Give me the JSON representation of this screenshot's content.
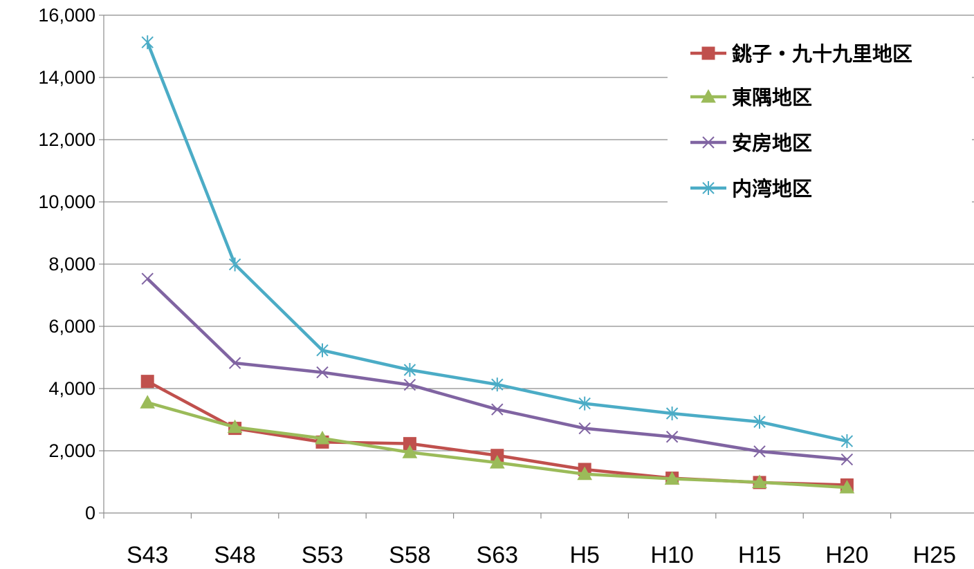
{
  "chart_data": {
    "type": "line",
    "title": "",
    "xlabel": "",
    "ylabel": "",
    "categories": [
      "S43",
      "S48",
      "S53",
      "S58",
      "S63",
      "H5",
      "H10",
      "H15",
      "H20",
      "H25"
    ],
    "ylim": [
      0,
      16000
    ],
    "yticks": [
      0,
      2000,
      4000,
      6000,
      8000,
      10000,
      12000,
      14000,
      16000
    ],
    "ytick_labels": [
      "0",
      "2,000",
      "4,000",
      "6,000",
      "8,000",
      "10,000",
      "12,000",
      "14,000",
      "16,000"
    ],
    "grid": true,
    "legend": "top-right",
    "series": [
      {
        "name": "銚子・九十九里地区",
        "color": "#c0504d",
        "marker": "square",
        "values": [
          4230,
          2720,
          2280,
          2230,
          1850,
          1400,
          1120,
          980,
          900,
          null
        ]
      },
      {
        "name": "東隅地区",
        "color": "#9bbb59",
        "marker": "triangle",
        "values": [
          3550,
          2760,
          2400,
          1950,
          1620,
          1250,
          1100,
          990,
          820,
          null
        ]
      },
      {
        "name": "安房地区",
        "color": "#8064a2",
        "marker": "x",
        "values": [
          7530,
          4820,
          4520,
          4120,
          3330,
          2720,
          2450,
          1980,
          1720,
          null
        ]
      },
      {
        "name": "内湾地区",
        "color": "#4bacc6",
        "marker": "star",
        "values": [
          15130,
          7990,
          5230,
          4600,
          4130,
          3520,
          3200,
          2930,
          2310,
          null
        ]
      }
    ]
  }
}
